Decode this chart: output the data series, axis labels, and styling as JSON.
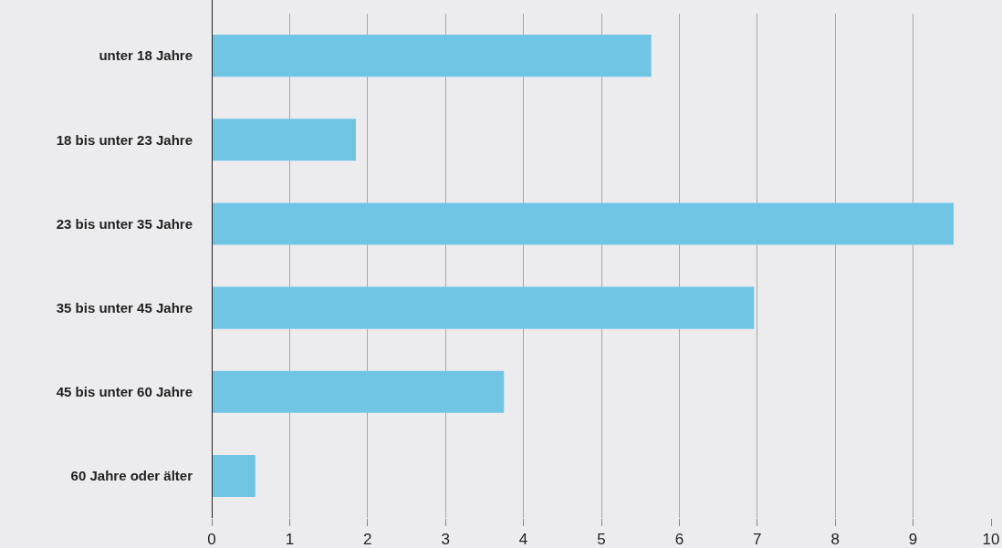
{
  "chart_data": {
    "type": "bar",
    "orientation": "horizontal",
    "categories": [
      "unter 18 Jahre",
      "18 bis unter 23 Jahre",
      "23 bis unter 35 Jahre",
      "35 bis unter 45 Jahre",
      "45 bis unter 60 Jahre",
      "60 Jahre oder älter"
    ],
    "values": [
      5.64,
      1.85,
      9.52,
      6.96,
      3.75,
      0.56
    ],
    "color": "#70c5e5",
    "xlim": [
      0,
      10
    ],
    "xticks": [
      0,
      1,
      2,
      3,
      4,
      5,
      6,
      7,
      8,
      9,
      10
    ],
    "grid": "x"
  }
}
